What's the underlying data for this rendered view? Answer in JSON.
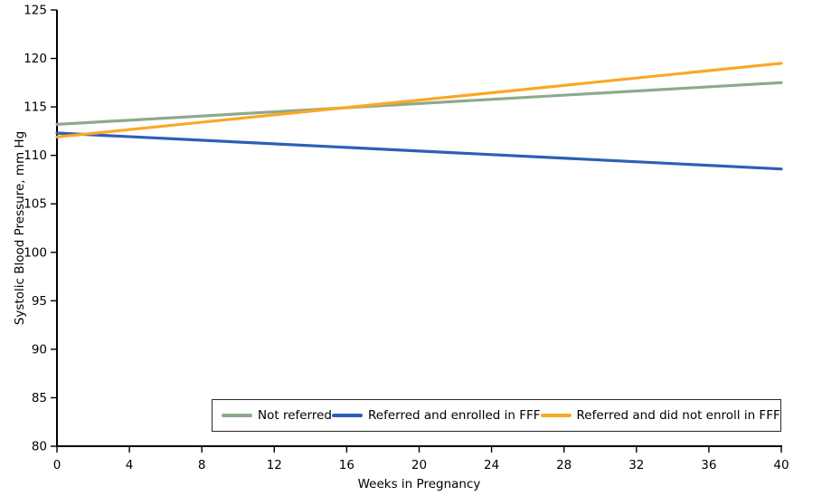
{
  "figure": {
    "background": "#ffffff",
    "axis_color": "#000000",
    "text_color": "#000000"
  },
  "chart_data": {
    "type": "line",
    "title": "",
    "xlabel": "Weeks in Pregnancy",
    "ylabel": "Systolic Blood Pressure, mm Hg",
    "xlim": [
      0,
      40
    ],
    "ylim": [
      80,
      125
    ],
    "x_ticks": [
      0,
      4,
      8,
      12,
      16,
      20,
      24,
      28,
      32,
      36,
      40
    ],
    "y_ticks": [
      80,
      85,
      90,
      95,
      100,
      105,
      110,
      115,
      120,
      125
    ],
    "grid": false,
    "legend_position": "bottom-right-inside",
    "x": [
      0,
      40
    ],
    "series": [
      {
        "name": "Not referred",
        "color": "#8EA98D",
        "values": [
          113.2,
          117.5
        ]
      },
      {
        "name": "Referred and enrolled in FFF",
        "color": "#2E5EB8",
        "values": [
          112.3,
          108.6
        ]
      },
      {
        "name": "Referred and did not enroll in FFF",
        "color": "#F9A825",
        "values": [
          111.9,
          119.5
        ]
      }
    ]
  }
}
